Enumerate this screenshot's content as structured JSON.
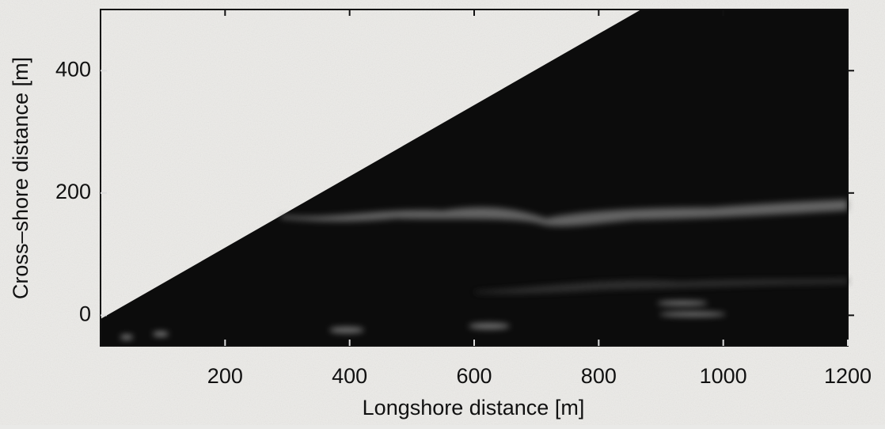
{
  "chart_data": {
    "type": "image",
    "xlabel": "Longshore distance [m]",
    "ylabel": "Cross–shore distance [m]",
    "xlim": [
      0,
      1200
    ],
    "ylim": [
      -50,
      500
    ],
    "xticks": [
      200,
      400,
      600,
      800,
      1000,
      1200
    ],
    "yticks": [
      0,
      200,
      400
    ]
  }
}
